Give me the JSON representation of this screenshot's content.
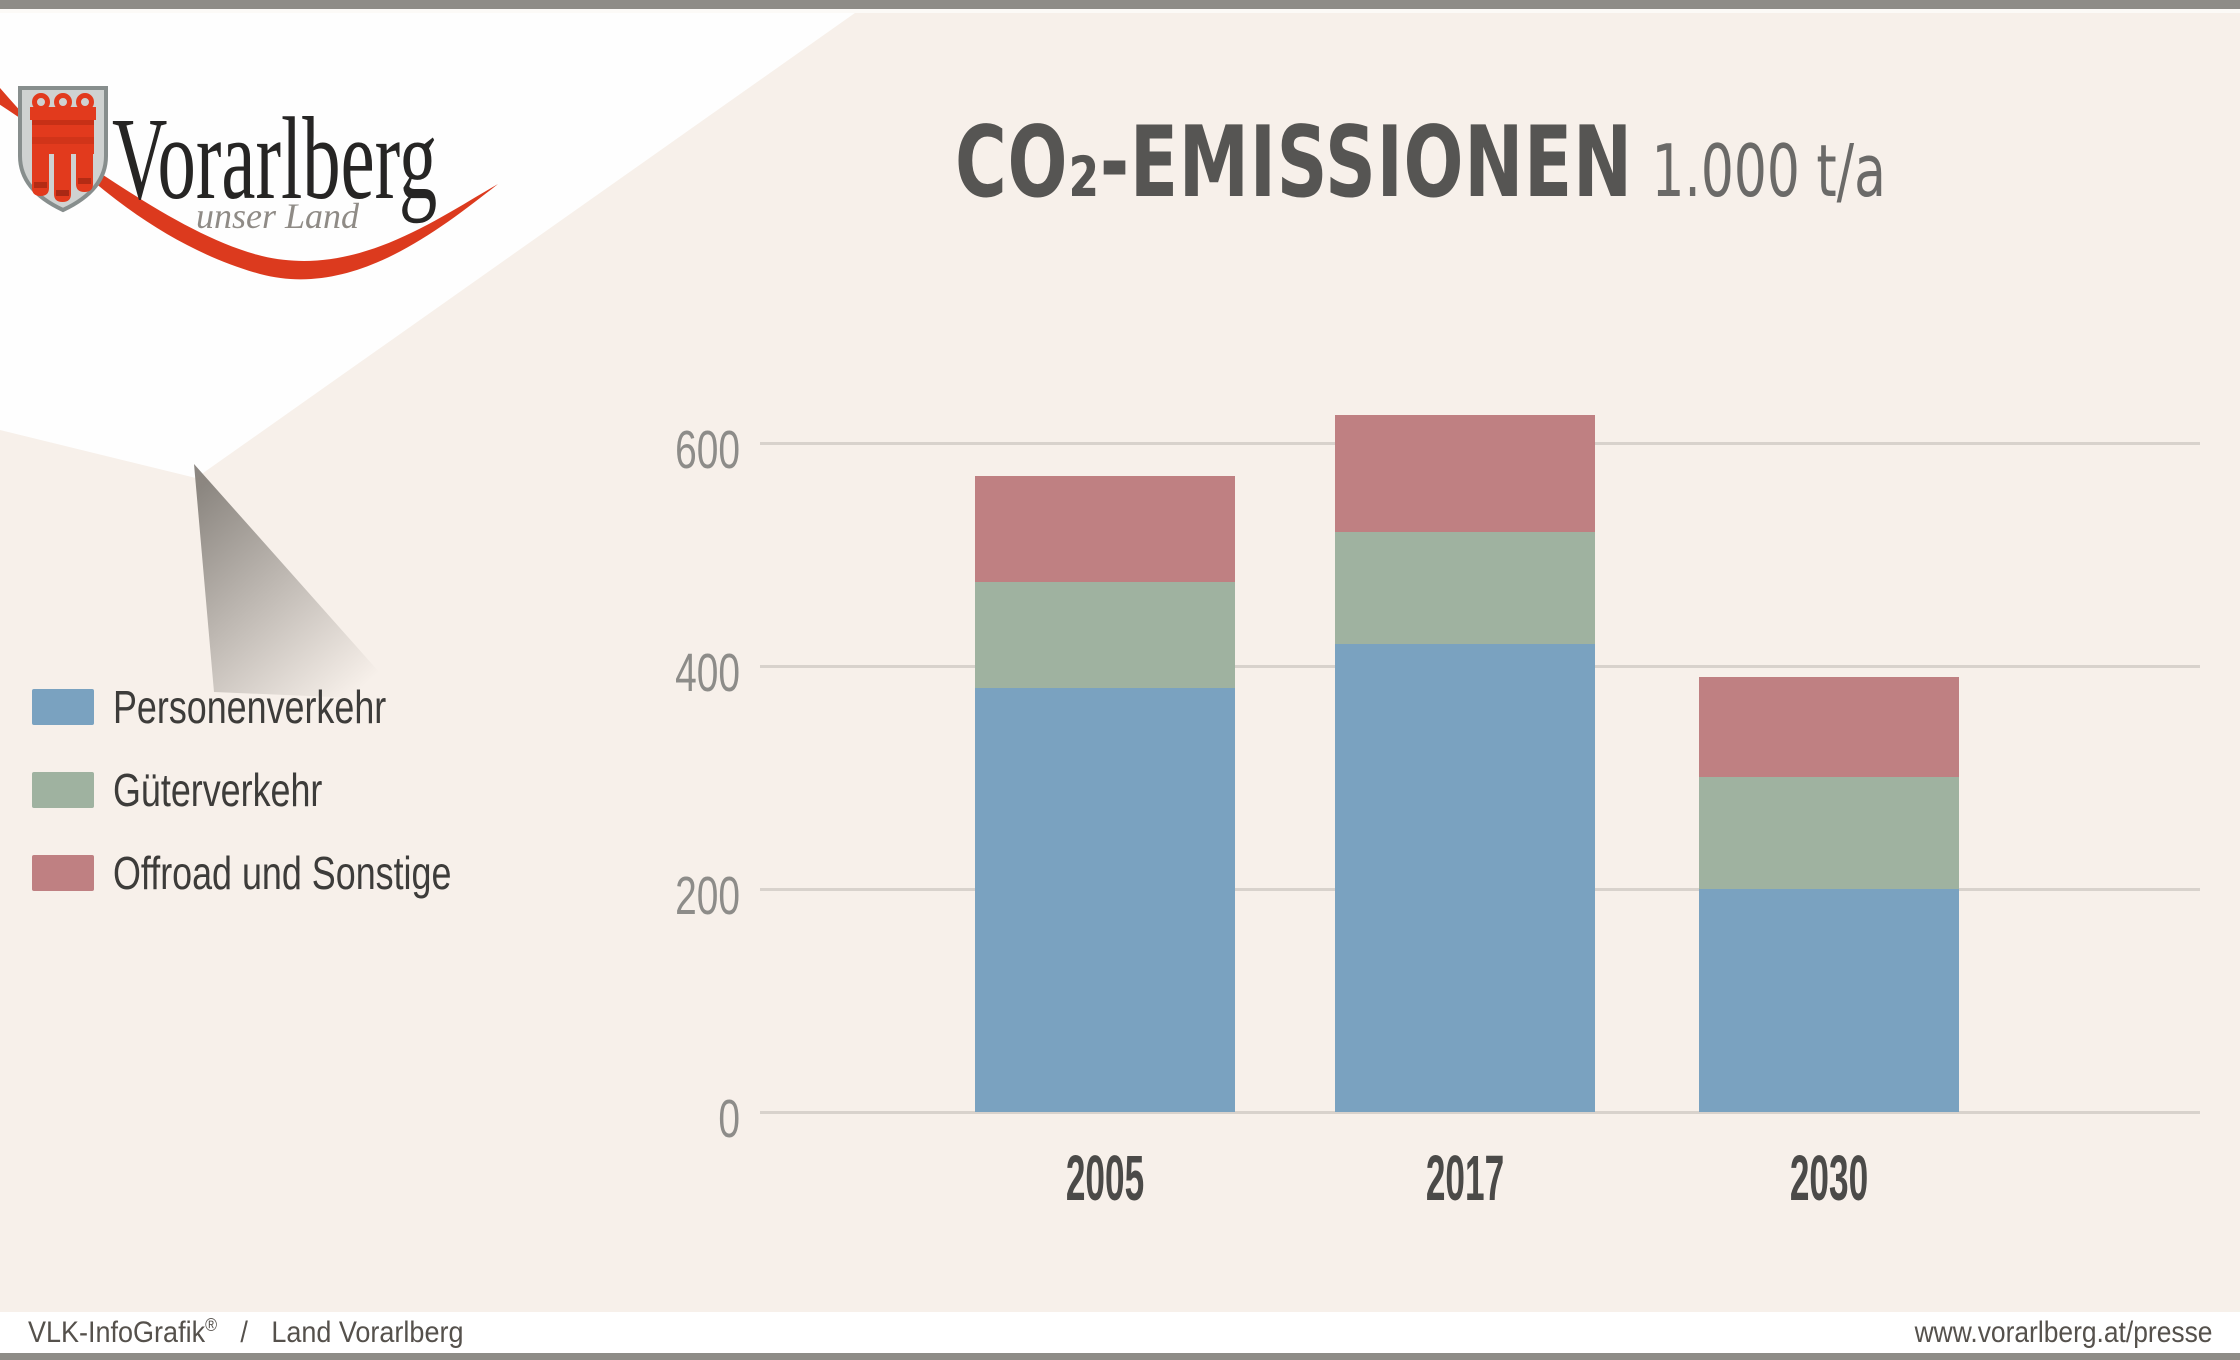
{
  "logo": {
    "region": "Vorarlberg",
    "tagline": "unser Land",
    "swoosh_color": "#dc3a1e",
    "shield": {
      "banner_color": "#e23a1d",
      "frame_color": "#cfd2d1"
    }
  },
  "header": {
    "title": "CO₂-EMISSIONEN",
    "unit": "1.000 t/a"
  },
  "chart_data": {
    "type": "bar",
    "stacked": true,
    "title": "CO₂-EMISSIONEN",
    "unit_label": "1.000 t/a",
    "categories": [
      "2005",
      "2017",
      "2030"
    ],
    "series": [
      {
        "name": "Personenverkehr",
        "color": "#7aa2c0",
        "values": [
          380,
          420,
          200
        ]
      },
      {
        "name": "Güterverkehr",
        "color": "#9fb2a0",
        "values": [
          95,
          100,
          100
        ]
      },
      {
        "name": "Offroad und Sonstige",
        "color": "#bf8082",
        "values": [
          95,
          105,
          90
        ]
      }
    ],
    "ylim": [
      0,
      650
    ],
    "yticks": [
      0,
      200,
      400,
      600
    ],
    "grid": true,
    "legend_position": "left",
    "background_color": "#f7f0ea"
  },
  "footer": {
    "left_credit": "VLK-InfoGrafik",
    "left_mark": "®",
    "separator": "/",
    "left_org": "Land Vorarlberg",
    "right_url": "www.vorarlberg.at/presse"
  }
}
